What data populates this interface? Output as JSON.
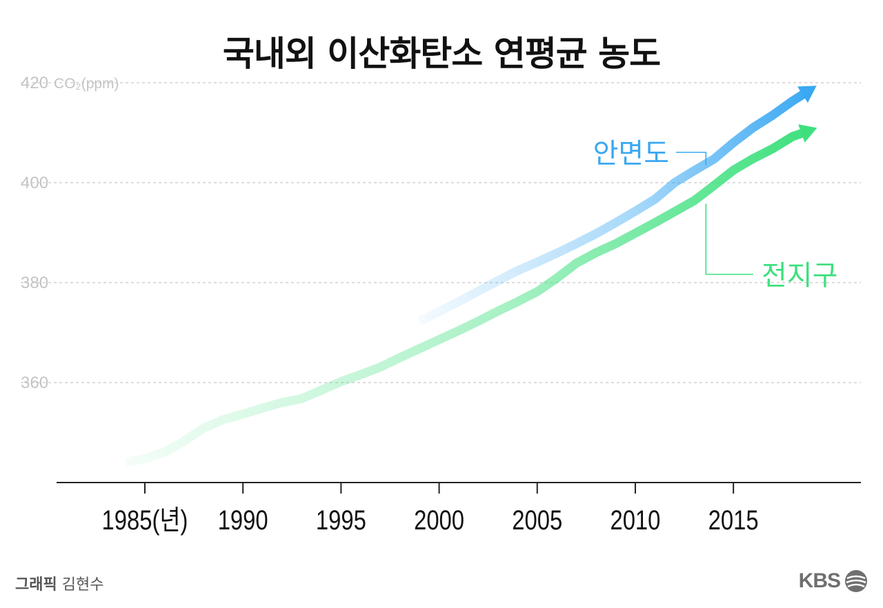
{
  "title": "국내외 이산화탄소 연평균 농도",
  "credit": {
    "role": "그래픽",
    "name": "김현수"
  },
  "logo": "KBS",
  "colors": {
    "anmyeondo": "#3aa8f2",
    "global": "#3ee07e",
    "grid": "#c8c8c8",
    "axis": "#222222",
    "ytick": "#c4c4c4"
  },
  "chart_data": {
    "type": "line",
    "title": "국내외 이산화탄소 연평균 농도",
    "ylabel": "CO₂(ppm)",
    "y_unit_label": "CO₂(ppm)",
    "xlim": [
      1980.5,
      2021.5
    ],
    "ylim": [
      340,
      420
    ],
    "y_ticks": [
      360,
      380,
      400,
      420
    ],
    "x_ticks": [
      1985,
      1990,
      1995,
      2000,
      2005,
      2010,
      2015
    ],
    "x_tick_labels": [
      "1985(년)",
      "1990",
      "1995",
      "2000",
      "2005",
      "2010",
      "2015"
    ],
    "grid": true,
    "series": [
      {
        "name": "안면도",
        "color": "#3aa8f2",
        "x": [
          1999,
          2000,
          2001,
          2002,
          2003,
          2004,
          2005,
          2006,
          2007,
          2008,
          2009,
          2010,
          2011,
          2012,
          2013,
          2014,
          2015,
          2016,
          2017,
          2018,
          2019
        ],
        "values": [
          372.3,
          374.2,
          376.2,
          378.3,
          380.4,
          382.4,
          384.1,
          385.9,
          387.8,
          389.8,
          392.0,
          394.3,
          396.7,
          400.0,
          402.4,
          404.7,
          408.0,
          411.0,
          413.5,
          416.3,
          418.8
        ]
      },
      {
        "name": "전지구",
        "color": "#3ee07e",
        "x": [
          1984,
          1985,
          1986,
          1987,
          1988,
          1989,
          1990,
          1991,
          1992,
          1993,
          1994,
          1995,
          1996,
          1997,
          1998,
          1999,
          2000,
          2001,
          2002,
          2003,
          2004,
          2005,
          2006,
          2007,
          2008,
          2009,
          2010,
          2011,
          2012,
          2013,
          2014,
          2015,
          2016,
          2017,
          2018,
          2019
        ],
        "values": [
          344.0,
          344.8,
          346.1,
          348.3,
          350.9,
          352.6,
          353.7,
          354.9,
          356.0,
          356.8,
          358.5,
          360.2,
          361.6,
          363.1,
          365.0,
          366.8,
          368.6,
          370.4,
          372.3,
          374.3,
          376.2,
          378.2,
          380.9,
          383.9,
          386.0,
          387.8,
          389.9,
          392.0,
          394.2,
          396.4,
          399.4,
          402.5,
          404.8,
          406.8,
          409.2,
          410.6
        ]
      }
    ]
  }
}
